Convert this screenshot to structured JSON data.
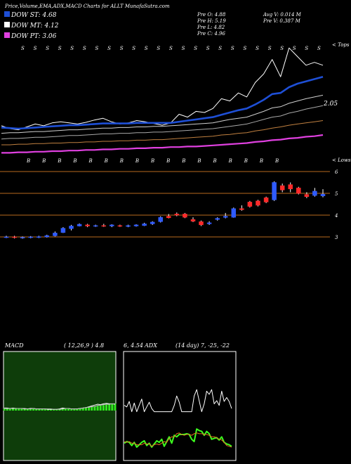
{
  "title": "Price,Volume,EMA,ADX,MACD Charts for ALLT MunafaSutra.com",
  "legend": [
    {
      "label": "DOW ST: 4.68",
      "color": "#1e4fd6"
    },
    {
      "label": "DOW MT: 4.12",
      "color": "#ffffff"
    },
    {
      "label": "DOW PT: 3.06",
      "color": "#e040e0"
    }
  ],
  "prev_info": {
    "open": "Pre   O: 4.88",
    "high": "Pre   H: 5.19",
    "low": "Pre   L: 4.82",
    "close": "Pre   C: 4.96",
    "avg_volume": "Avg V: 0.014  M",
    "prev_volume": "Pre   V: 0.387 M"
  },
  "chart_data": [
    {
      "type": "line",
      "panel": "price-ema",
      "corner_tag": "< Tops",
      "value_label": "2.05",
      "top_labels": [
        "S",
        "S",
        "S",
        "S",
        "S",
        "S",
        "S",
        "S",
        "S",
        "S",
        "S",
        "S",
        "S",
        "S",
        "S",
        "S",
        "S",
        "S",
        "S",
        "S",
        "S",
        "S",
        "S",
        "S",
        "S"
      ],
      "bottom_labels": [
        "B",
        "B",
        "B",
        "B",
        "B",
        "B",
        "B",
        "B",
        "B",
        "B",
        "B",
        "B",
        "B",
        "B",
        "B",
        "B",
        "B"
      ],
      "series": [
        {
          "color": "#ffffff",
          "values": [
            4.05,
            4.0,
            3.98,
            4.03,
            4.08,
            4.05,
            4.1,
            4.12,
            4.1,
            4.08,
            4.11,
            4.15,
            4.18,
            4.12,
            4.08,
            4.1,
            4.14,
            4.12,
            4.09,
            4.06,
            4.1,
            4.25,
            4.2,
            4.3,
            4.28,
            4.35,
            4.52,
            4.48,
            4.62,
            4.55,
            4.8,
            4.95,
            5.2,
            4.9,
            5.4,
            5.25,
            5.1,
            5.15,
            5.1
          ]
        },
        {
          "color": "#1e4fd6",
          "values": [
            4.02,
            4.01,
            4.0,
            4.01,
            4.02,
            4.03,
            4.04,
            4.05,
            4.06,
            4.06,
            4.07,
            4.08,
            4.09,
            4.09,
            4.09,
            4.09,
            4.1,
            4.1,
            4.1,
            4.1,
            4.1,
            4.12,
            4.14,
            4.16,
            4.18,
            4.2,
            4.24,
            4.28,
            4.32,
            4.35,
            4.42,
            4.5,
            4.6,
            4.62,
            4.72,
            4.78,
            4.82,
            4.86,
            4.9
          ]
        },
        {
          "color": "#cfcfcf",
          "values": [
            3.92,
            3.93,
            3.93,
            3.94,
            3.95,
            3.95,
            3.96,
            3.97,
            3.98,
            3.98,
            3.99,
            4.0,
            4.01,
            4.01,
            4.02,
            4.02,
            4.03,
            4.03,
            4.04,
            4.04,
            4.05,
            4.06,
            4.07,
            4.08,
            4.09,
            4.1,
            4.13,
            4.16,
            4.18,
            4.2,
            4.25,
            4.3,
            4.36,
            4.38,
            4.44,
            4.48,
            4.52,
            4.55,
            4.58
          ]
        },
        {
          "color": "#a8a8a8",
          "values": [
            3.82,
            3.83,
            3.83,
            3.84,
            3.85,
            3.85,
            3.86,
            3.87,
            3.88,
            3.88,
            3.89,
            3.9,
            3.91,
            3.91,
            3.92,
            3.92,
            3.93,
            3.93,
            3.94,
            3.94,
            3.95,
            3.96,
            3.97,
            3.98,
            3.99,
            4.0,
            4.02,
            4.04,
            4.06,
            4.08,
            4.12,
            4.16,
            4.2,
            4.22,
            4.27,
            4.3,
            4.34,
            4.37,
            4.4
          ]
        },
        {
          "color": "#c08040",
          "values": [
            3.72,
            3.72,
            3.73,
            3.73,
            3.74,
            3.74,
            3.75,
            3.75,
            3.76,
            3.76,
            3.77,
            3.77,
            3.78,
            3.78,
            3.79,
            3.79,
            3.8,
            3.8,
            3.81,
            3.81,
            3.82,
            3.83,
            3.84,
            3.85,
            3.86,
            3.87,
            3.89,
            3.9,
            3.92,
            3.93,
            3.96,
            3.98,
            4.01,
            4.03,
            4.06,
            4.08,
            4.1,
            4.12,
            4.14
          ]
        },
        {
          "color": "#e040e0",
          "values": [
            3.58,
            3.58,
            3.59,
            3.59,
            3.6,
            3.6,
            3.61,
            3.61,
            3.62,
            3.62,
            3.63,
            3.63,
            3.64,
            3.64,
            3.65,
            3.65,
            3.66,
            3.66,
            3.67,
            3.67,
            3.68,
            3.68,
            3.69,
            3.69,
            3.7,
            3.71,
            3.72,
            3.73,
            3.74,
            3.75,
            3.77,
            3.78,
            3.8,
            3.81,
            3.83,
            3.84,
            3.86,
            3.87,
            3.89
          ]
        }
      ]
    },
    {
      "type": "candlestick",
      "panel": "price-candles",
      "corner_tag": "< Lows",
      "y_ticks": [
        "6",
        "5",
        "4",
        "3"
      ],
      "candles": [
        {
          "o": 3.0,
          "c": 3.0,
          "h": 3.05,
          "l": 2.95
        },
        {
          "o": 3.0,
          "c": 2.98,
          "h": 3.05,
          "l": 2.93
        },
        {
          "o": 2.98,
          "c": 2.98,
          "h": 3.02,
          "l": 2.92
        },
        {
          "o": 2.98,
          "c": 3.0,
          "h": 3.04,
          "l": 2.94
        },
        {
          "o": 2.99,
          "c": 3.01,
          "h": 3.05,
          "l": 2.95
        },
        {
          "o": 3.0,
          "c": 3.06,
          "h": 3.1,
          "l": 2.97
        },
        {
          "o": 3.05,
          "c": 3.18,
          "h": 3.25,
          "l": 3.02
        },
        {
          "o": 3.2,
          "c": 3.4,
          "h": 3.45,
          "l": 3.18
        },
        {
          "o": 3.38,
          "c": 3.5,
          "h": 3.55,
          "l": 3.3
        },
        {
          "o": 3.5,
          "c": 3.58,
          "h": 3.62,
          "l": 3.48
        },
        {
          "o": 3.55,
          "c": 3.5,
          "h": 3.6,
          "l": 3.45
        },
        {
          "o": 3.5,
          "c": 3.52,
          "h": 3.56,
          "l": 3.46
        },
        {
          "o": 3.52,
          "c": 3.5,
          "h": 3.6,
          "l": 3.46
        },
        {
          "o": 3.5,
          "c": 3.55,
          "h": 3.58,
          "l": 3.45
        },
        {
          "o": 3.52,
          "c": 3.5,
          "h": 3.56,
          "l": 3.46
        },
        {
          "o": 3.48,
          "c": 3.52,
          "h": 3.56,
          "l": 3.45
        },
        {
          "o": 3.5,
          "c": 3.55,
          "h": 3.58,
          "l": 3.47
        },
        {
          "o": 3.52,
          "c": 3.6,
          "h": 3.65,
          "l": 3.5
        },
        {
          "o": 3.6,
          "c": 3.68,
          "h": 3.72,
          "l": 3.55
        },
        {
          "o": 3.7,
          "c": 3.9,
          "h": 3.95,
          "l": 3.66
        },
        {
          "o": 3.95,
          "c": 3.88,
          "h": 4.05,
          "l": 3.85
        },
        {
          "o": 4.05,
          "c": 4.0,
          "h": 4.12,
          "l": 3.95
        },
        {
          "o": 4.05,
          "c": 3.9,
          "h": 4.1,
          "l": 3.86
        },
        {
          "o": 3.8,
          "c": 3.72,
          "h": 3.9,
          "l": 3.68
        },
        {
          "o": 3.7,
          "c": 3.55,
          "h": 3.75,
          "l": 3.5
        },
        {
          "o": 3.6,
          "c": 3.65,
          "h": 3.72,
          "l": 3.55
        },
        {
          "o": 3.8,
          "c": 3.85,
          "h": 3.9,
          "l": 3.75
        },
        {
          "o": 3.9,
          "c": 3.95,
          "h": 4.1,
          "l": 3.85
        },
        {
          "o": 3.9,
          "c": 4.3,
          "h": 4.35,
          "l": 3.88
        },
        {
          "o": 4.3,
          "c": 4.25,
          "h": 4.45,
          "l": 4.2
        },
        {
          "o": 4.6,
          "c": 4.4,
          "h": 4.65,
          "l": 4.35
        },
        {
          "o": 4.65,
          "c": 4.45,
          "h": 4.7,
          "l": 4.4
        },
        {
          "o": 4.8,
          "c": 4.6,
          "h": 4.85,
          "l": 4.55
        },
        {
          "o": 4.7,
          "c": 5.5,
          "h": 5.55,
          "l": 4.65
        },
        {
          "o": 5.35,
          "c": 5.15,
          "h": 5.45,
          "l": 5.05
        },
        {
          "o": 5.4,
          "c": 5.2,
          "h": 5.5,
          "l": 5.05
        },
        {
          "o": 5.25,
          "c": 5.0,
          "h": 5.3,
          "l": 4.95
        },
        {
          "o": 4.95,
          "c": 4.85,
          "h": 5.05,
          "l": 4.78
        },
        {
          "o": 4.9,
          "c": 5.1,
          "h": 5.25,
          "l": 4.85
        },
        {
          "o": 4.88,
          "c": 4.96,
          "h": 5.19,
          "l": 4.82
        }
      ]
    },
    {
      "type": "histogram",
      "panel": "macd",
      "label": "MACD",
      "params": "( 12,26,9 ) 4.8",
      "values_text": "6, 4.54",
      "histogram": [
        0.4,
        0.5,
        0.5,
        0.6,
        0.6,
        0.5,
        0.5,
        0.4,
        0.4,
        0.5,
        0.5,
        0.4,
        0.4,
        0.4,
        0.3,
        0.3,
        0.3,
        0.3,
        0.3,
        0.4,
        0.5,
        0.5,
        0.4,
        0.3,
        0.3,
        0.4,
        0.5,
        0.6,
        0.7,
        0.8,
        0.9,
        1.0,
        1.1,
        1.2,
        1.3,
        1.4,
        1.5,
        1.6,
        1.7
      ],
      "macd_line": [
        0.6,
        0.6,
        0.5,
        0.6,
        0.5,
        0.5,
        0.5,
        0.4,
        0.4,
        0.5,
        0.5,
        0.4,
        0.4,
        0.4,
        0.4,
        0.3,
        0.3,
        0.3,
        0.3,
        0.4,
        0.6,
        0.5,
        0.5,
        0.4,
        0.4,
        0.4,
        0.5,
        0.6,
        0.7,
        0.9,
        1.1,
        1.3,
        1.5,
        1.4,
        1.6,
        1.7,
        1.6,
        1.6,
        1.5
      ],
      "signal_line": [
        0.5,
        0.5,
        0.5,
        0.5,
        0.5,
        0.5,
        0.5,
        0.5,
        0.4,
        0.4,
        0.5,
        0.4,
        0.4,
        0.4,
        0.4,
        0.4,
        0.4,
        0.3,
        0.3,
        0.3,
        0.4,
        0.5,
        0.5,
        0.4,
        0.4,
        0.4,
        0.5,
        0.6,
        0.7,
        0.8,
        0.9,
        1.0,
        1.2,
        1.3,
        1.4,
        1.5,
        1.5,
        1.6,
        1.6
      ]
    },
    {
      "type": "line",
      "panel": "adx",
      "label": "ADX",
      "params": "(14 day) 7, -25, -22",
      "series": [
        {
          "color": "#ffffff",
          "values": [
            70,
            68,
            75,
            62,
            73,
            62,
            70,
            78,
            62,
            68,
            74,
            66,
            62,
            62,
            62,
            62,
            62,
            62,
            62,
            62,
            70,
            82,
            74,
            62,
            62,
            62,
            62,
            62,
            82,
            90,
            76,
            62,
            72,
            88,
            84,
            90,
            72,
            76,
            70,
            88,
            75,
            80,
            75,
            66
          ]
        },
        {
          "color": "#3cff1e",
          "values": [
            22,
            24,
            23,
            19,
            23,
            17,
            20,
            23,
            25,
            19,
            22,
            17,
            21,
            25,
            23,
            27,
            18,
            24,
            30,
            22,
            32,
            30,
            33,
            33,
            33,
            34,
            33,
            27,
            24,
            40,
            38,
            37,
            32,
            37,
            34,
            27,
            28,
            29,
            26,
            30,
            23,
            21,
            20,
            18
          ]
        },
        {
          "color": "#e07020",
          "values": [
            24,
            23,
            24,
            22,
            22,
            20,
            20,
            20,
            22,
            21,
            21,
            18,
            20,
            21,
            20,
            22,
            24,
            23,
            28,
            30,
            30,
            34,
            35,
            33,
            32,
            33,
            33,
            32,
            34,
            35,
            34,
            34,
            33,
            33,
            32,
            30,
            30,
            29,
            27,
            26,
            23,
            19,
            18,
            17
          ]
        }
      ]
    }
  ]
}
